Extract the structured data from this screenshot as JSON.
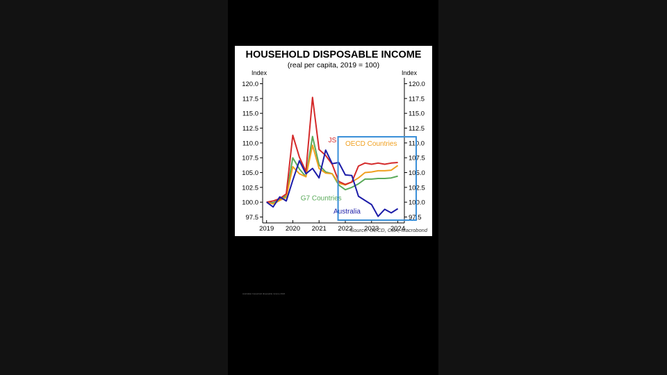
{
  "colors": {
    "background": "#000000",
    "side_panel": "#121212",
    "us": "#d42a2a",
    "oecd": "#f0a020",
    "g7": "#5aaa5a",
    "australia": "#1c1ca8",
    "highlight_box": "#3a8fd8"
  },
  "chart_data": {
    "type": "line",
    "title": "HOUSEHOLD DISPOSABLE INCOME",
    "subtitle": "(real per capita, 2019 = 100)",
    "ylabel_left": "Index",
    "ylabel_right": "Index",
    "source": "Source: OECD, CBA, Macrobond",
    "ylim": [
      96.5,
      121
    ],
    "xlim": [
      2018.85,
      2024.25
    ],
    "yticks": [
      "120.0",
      "117.5",
      "115.0",
      "112.5",
      "110.0",
      "107.5",
      "105.0",
      "102.5",
      "100.0",
      "97.5"
    ],
    "ytick_values": [
      120,
      117.5,
      115,
      112.5,
      110,
      107.5,
      105,
      102.5,
      100,
      97.5
    ],
    "xticks": [
      "2019",
      "2020",
      "2021",
      "2022",
      "2023",
      "2024"
    ],
    "xtick_values": [
      2019,
      2020,
      2021,
      2022,
      2023,
      2024
    ],
    "series": [
      {
        "name": "US",
        "color": "#d42a2a",
        "label_text": "JS",
        "x": [
          2019.0,
          2019.25,
          2019.5,
          2019.75,
          2020.0,
          2020.25,
          2020.5,
          2020.75,
          2021.0,
          2021.25,
          2021.5,
          2021.75,
          2022.0,
          2022.25,
          2022.5,
          2022.75,
          2023.0,
          2023.25,
          2023.5,
          2023.75,
          2024.0
        ],
        "values": [
          100.0,
          100.2,
          100.6,
          101.4,
          111.3,
          107.6,
          105.2,
          117.7,
          108.9,
          107.9,
          106.4,
          103.5,
          103.0,
          103.4,
          106.1,
          106.6,
          106.4,
          106.6,
          106.4,
          106.6,
          106.7
        ]
      },
      {
        "name": "OECD Countries",
        "color": "#f0a020",
        "label_text": "OECD Countries",
        "x": [
          2019.0,
          2019.25,
          2019.5,
          2019.75,
          2020.0,
          2020.25,
          2020.5,
          2020.75,
          2021.0,
          2021.25,
          2021.5,
          2021.75,
          2022.0,
          2022.25,
          2022.5,
          2022.75,
          2023.0,
          2023.25,
          2023.5,
          2023.75,
          2024.0
        ],
        "values": [
          100.0,
          99.7,
          100.3,
          100.8,
          106.0,
          104.8,
          104.3,
          109.6,
          105.7,
          104.9,
          104.8,
          103.2,
          102.9,
          103.4,
          104.1,
          105.0,
          105.1,
          105.3,
          105.3,
          105.4,
          106.2
        ]
      },
      {
        "name": "G7 Countries",
        "color": "#5aaa5a",
        "label_text": "G7 Countries",
        "x": [
          2019.0,
          2019.25,
          2019.5,
          2019.75,
          2020.0,
          2020.25,
          2020.5,
          2020.75,
          2021.0,
          2021.25,
          2021.5,
          2021.75,
          2022.0,
          2022.25,
          2022.5,
          2022.75,
          2023.0,
          2023.25,
          2023.5,
          2023.75,
          2024.0
        ],
        "values": [
          100.0,
          99.9,
          100.4,
          101.1,
          107.5,
          105.6,
          104.3,
          111.1,
          106.3,
          105.1,
          104.8,
          102.9,
          102.1,
          102.5,
          103.1,
          103.9,
          103.9,
          104.0,
          104.0,
          104.1,
          104.4
        ]
      },
      {
        "name": "Australia",
        "color": "#1c1ca8",
        "label_text": "Australia",
        "x": [
          2019.0,
          2019.25,
          2019.5,
          2019.75,
          2020.0,
          2020.25,
          2020.5,
          2020.75,
          2021.0,
          2021.25,
          2021.5,
          2021.75,
          2022.0,
          2022.25,
          2022.5,
          2022.75,
          2023.0,
          2023.25,
          2023.5,
          2023.75,
          2024.0
        ],
        "values": [
          100.0,
          99.2,
          100.9,
          100.2,
          103.7,
          107.0,
          104.8,
          105.7,
          104.1,
          108.8,
          106.5,
          106.7,
          104.6,
          104.5,
          101.0,
          100.3,
          99.6,
          97.6,
          98.8,
          98.2,
          98.9
        ]
      }
    ],
    "annotations": [
      "Highlight box from 2021.75 to 2024 across full y range"
    ],
    "grid": false,
    "legend": "inline labels"
  },
  "footer_caption": "Australian household disposable income 2024"
}
